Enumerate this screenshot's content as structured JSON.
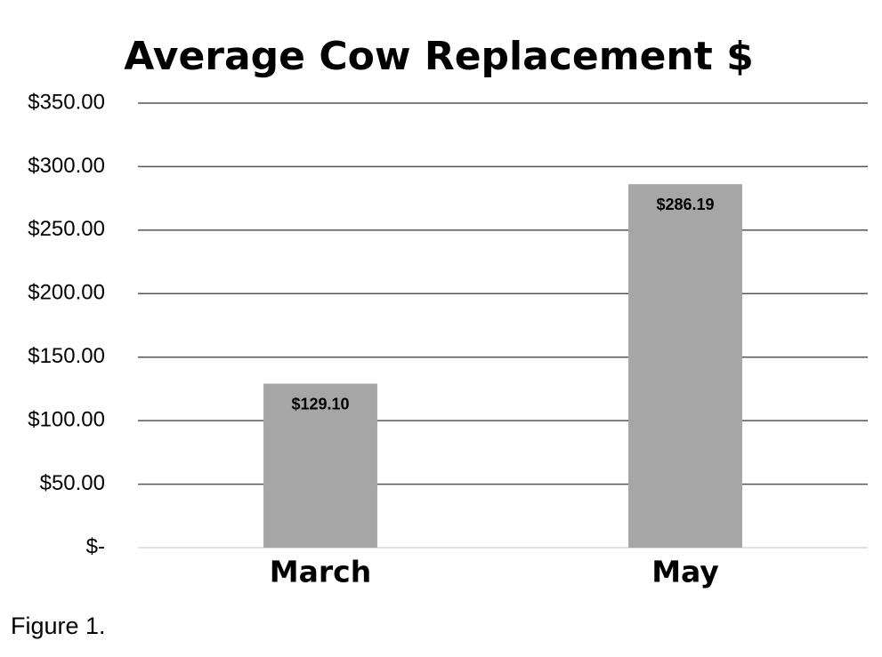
{
  "chart_data": {
    "type": "bar",
    "title": "Average Cow Replacement $",
    "categories": [
      "March",
      "May"
    ],
    "values": [
      129.1,
      286.19
    ],
    "value_labels": [
      "$129.10",
      "$286.19"
    ],
    "color": "#a6a6a6",
    "ylim": [
      0,
      350
    ],
    "yticks": [
      {
        "value": 0,
        "label": "$-"
      },
      {
        "value": 50,
        "label": "$50.00"
      },
      {
        "value": 100,
        "label": "$100.00"
      },
      {
        "value": 150,
        "label": "$150.00"
      },
      {
        "value": 200,
        "label": "$200.00"
      },
      {
        "value": 250,
        "label": "$250.00"
      },
      {
        "value": 300,
        "label": "$300.00"
      },
      {
        "value": 350,
        "label": "$350.00"
      }
    ],
    "grid": true
  },
  "caption": "Figure 1."
}
